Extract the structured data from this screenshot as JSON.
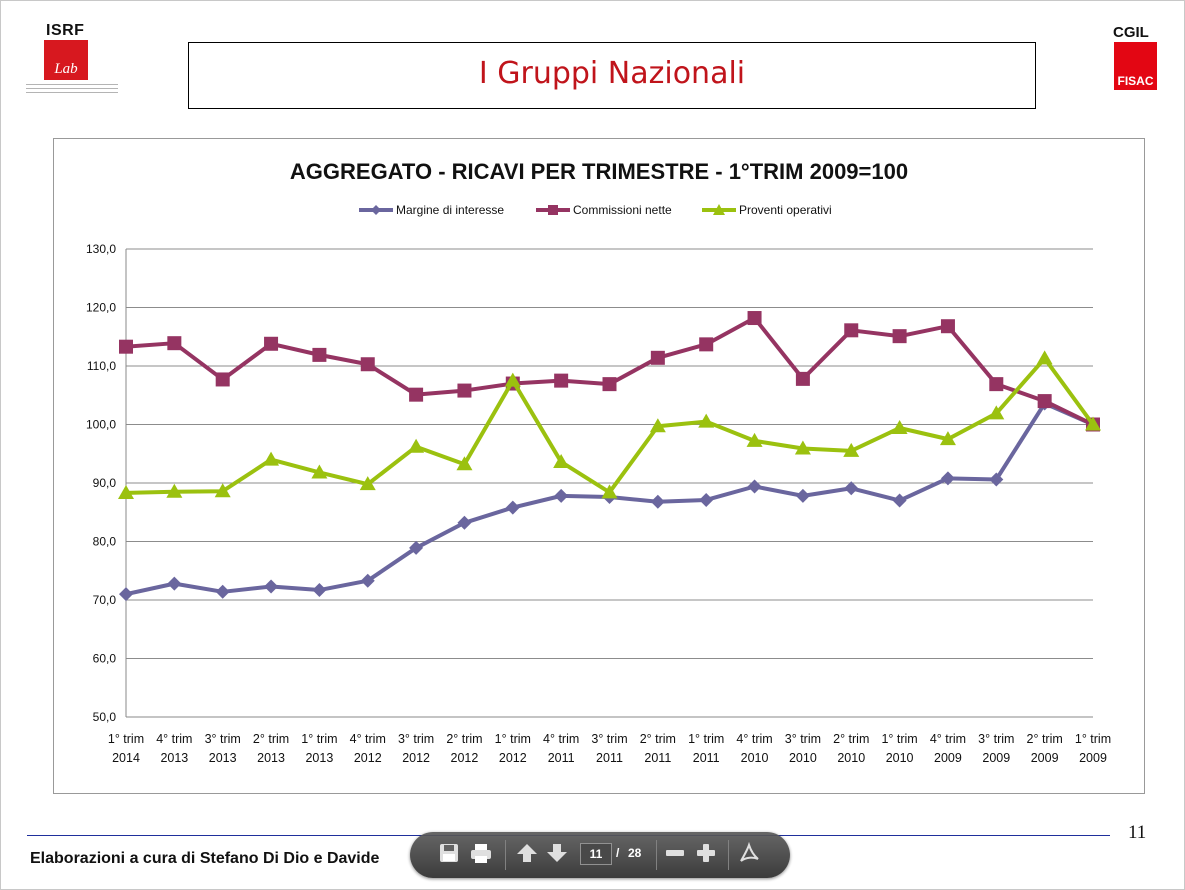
{
  "header": {
    "title": "I Gruppi Nazionali",
    "logo_left": "ISRF",
    "logo_left_sub": "Lab",
    "logo_right": "CGIL",
    "logo_right_sub": "FISAC"
  },
  "footer": {
    "text": "Elaborazioni a cura di Stefano Di Dio e Davide ",
    "page_number": "11"
  },
  "viewer_toolbar": {
    "current_page": "11",
    "separator": "/",
    "total_pages": "28",
    "icons": [
      "save-icon",
      "print-icon",
      "prev-page-icon",
      "next-page-icon",
      "zoom-out-icon",
      "zoom-in-icon",
      "acrobat-icon"
    ]
  },
  "chart_data": {
    "type": "line",
    "title": "AGGREGATO - RICAVI PER TRIMESTRE - 1°TRIM 2009=100",
    "legend_position": "top",
    "grid": true,
    "ylim": [
      50,
      130
    ],
    "yticks": [
      "50,0",
      "60,0",
      "70,0",
      "80,0",
      "90,0",
      "100,0",
      "110,0",
      "120,0",
      "130,0"
    ],
    "categories": [
      [
        "1° trim",
        "2014"
      ],
      [
        "4° trim",
        "2013"
      ],
      [
        "3° trim",
        "2013"
      ],
      [
        "2° trim",
        "2013"
      ],
      [
        "1° trim",
        "2013"
      ],
      [
        "4° trim",
        "2012"
      ],
      [
        "3° trim",
        "2012"
      ],
      [
        "2° trim",
        "2012"
      ],
      [
        "1° trim",
        "2012"
      ],
      [
        "4° trim",
        "2011"
      ],
      [
        "3° trim",
        "2011"
      ],
      [
        "2° trim",
        "2011"
      ],
      [
        "1° trim",
        "2011"
      ],
      [
        "4° trim",
        "2010"
      ],
      [
        "3° trim",
        "2010"
      ],
      [
        "2° trim",
        "2010"
      ],
      [
        "1° trim",
        "2010"
      ],
      [
        "4° trim",
        "2009"
      ],
      [
        "3° trim",
        "2009"
      ],
      [
        "2° trim",
        "2009"
      ],
      [
        "1° trim",
        "2009"
      ]
    ],
    "series": [
      {
        "name": "Margine di interesse",
        "color": "#6a669e",
        "marker": "diamond",
        "values": [
          71.0,
          72.8,
          71.4,
          72.3,
          71.7,
          73.3,
          78.9,
          83.2,
          85.8,
          87.8,
          87.6,
          86.8,
          87.1,
          89.4,
          87.8,
          89.1,
          87.0,
          90.8,
          90.6,
          103.6,
          100.0
        ]
      },
      {
        "name": "Commissioni nette",
        "color": "#953462",
        "marker": "square",
        "values": [
          113.3,
          113.9,
          107.7,
          113.8,
          111.9,
          110.3,
          105.1,
          105.8,
          107.0,
          107.5,
          106.9,
          111.4,
          113.7,
          118.2,
          107.8,
          116.1,
          115.1,
          116.8,
          106.9,
          104.0,
          100.0
        ]
      },
      {
        "name": "Proventi operativi",
        "color": "#9bc10f",
        "marker": "triangle",
        "values": [
          88.3,
          88.5,
          88.6,
          94.0,
          91.8,
          89.8,
          96.2,
          93.2,
          107.5,
          93.6,
          88.4,
          99.7,
          100.5,
          97.2,
          95.9,
          95.5,
          99.4,
          97.5,
          101.9,
          111.3,
          100.0
        ]
      }
    ]
  }
}
